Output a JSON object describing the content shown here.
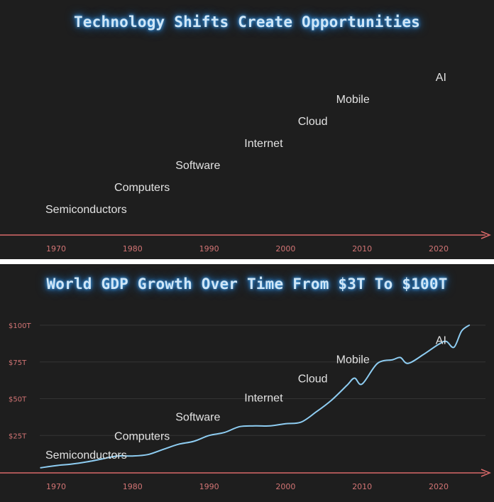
{
  "chart_data": [
    {
      "type": "scatter",
      "title": "Technology Shifts Create Opportunities",
      "xlabel": "",
      "ylabel": "",
      "xlim": [
        1967,
        2026
      ],
      "x_ticks": [
        1970,
        1980,
        1990,
        2000,
        2010,
        2020
      ],
      "annotations": [
        {
          "label": "Semiconductors",
          "x": 1970,
          "level": 1
        },
        {
          "label": "Computers",
          "x": 1979,
          "level": 2
        },
        {
          "label": "Software",
          "x": 1987,
          "level": 3
        },
        {
          "label": "Internet",
          "x": 1996,
          "level": 4
        },
        {
          "label": "Cloud",
          "x": 2003,
          "level": 5
        },
        {
          "label": "Mobile",
          "x": 2008,
          "level": 6
        },
        {
          "label": "AI",
          "x": 2021,
          "level": 7
        }
      ],
      "grid": false
    },
    {
      "type": "line",
      "title": "World GDP Growth Over Time From $3T To $100T",
      "xlabel": "",
      "ylabel": "",
      "xlim": [
        1967,
        2026
      ],
      "ylim": [
        0,
        100
      ],
      "x_ticks": [
        1970,
        1980,
        1990,
        2000,
        2010,
        2020
      ],
      "y_ticks": [
        {
          "value": 25,
          "label": "$25T"
        },
        {
          "value": 50,
          "label": "$50T"
        },
        {
          "value": 75,
          "label": "$75T"
        },
        {
          "value": 100,
          "label": "$100T"
        }
      ],
      "series": [
        {
          "color": "#8ecdf2",
          "x": [
            1968,
            1970,
            1972,
            1974,
            1976,
            1978,
            1980,
            1982,
            1984,
            1986,
            1988,
            1990,
            1992,
            1994,
            1996,
            1998,
            2000,
            2002,
            2004,
            2006,
            2008,
            2009,
            2010,
            2012,
            2014,
            2015,
            2016,
            2018,
            2020,
            2021,
            2022,
            2023,
            2024
          ],
          "y": [
            3,
            4.5,
            5.5,
            7,
            9,
            11,
            11,
            12,
            15.5,
            19,
            21,
            25,
            27,
            31,
            31.5,
            31.5,
            33,
            34,
            41,
            49,
            59,
            64,
            60,
            74,
            76.5,
            78,
            74,
            80,
            87,
            89,
            85,
            96,
            100
          ]
        }
      ],
      "annotations": [
        {
          "label": "Semiconductors",
          "x": 1970,
          "y": 12
        },
        {
          "label": "Computers",
          "x": 1979,
          "y": 25
        },
        {
          "label": "Software",
          "x": 1987,
          "y": 38
        },
        {
          "label": "Internet",
          "x": 1996,
          "y": 51
        },
        {
          "label": "Cloud",
          "x": 2003,
          "y": 64
        },
        {
          "label": "Mobile",
          "x": 2008,
          "y": 77
        },
        {
          "label": "AI",
          "x": 2021,
          "y": 90
        }
      ],
      "grid": true
    }
  ],
  "colors": {
    "background": "#1e1e1e",
    "axis": "#d96868",
    "tick_text": "#d27474",
    "label_text": "#e2e2e2",
    "line": "#8ecdf2",
    "grid": "#343434",
    "title_glow": "#3d9ee8"
  }
}
